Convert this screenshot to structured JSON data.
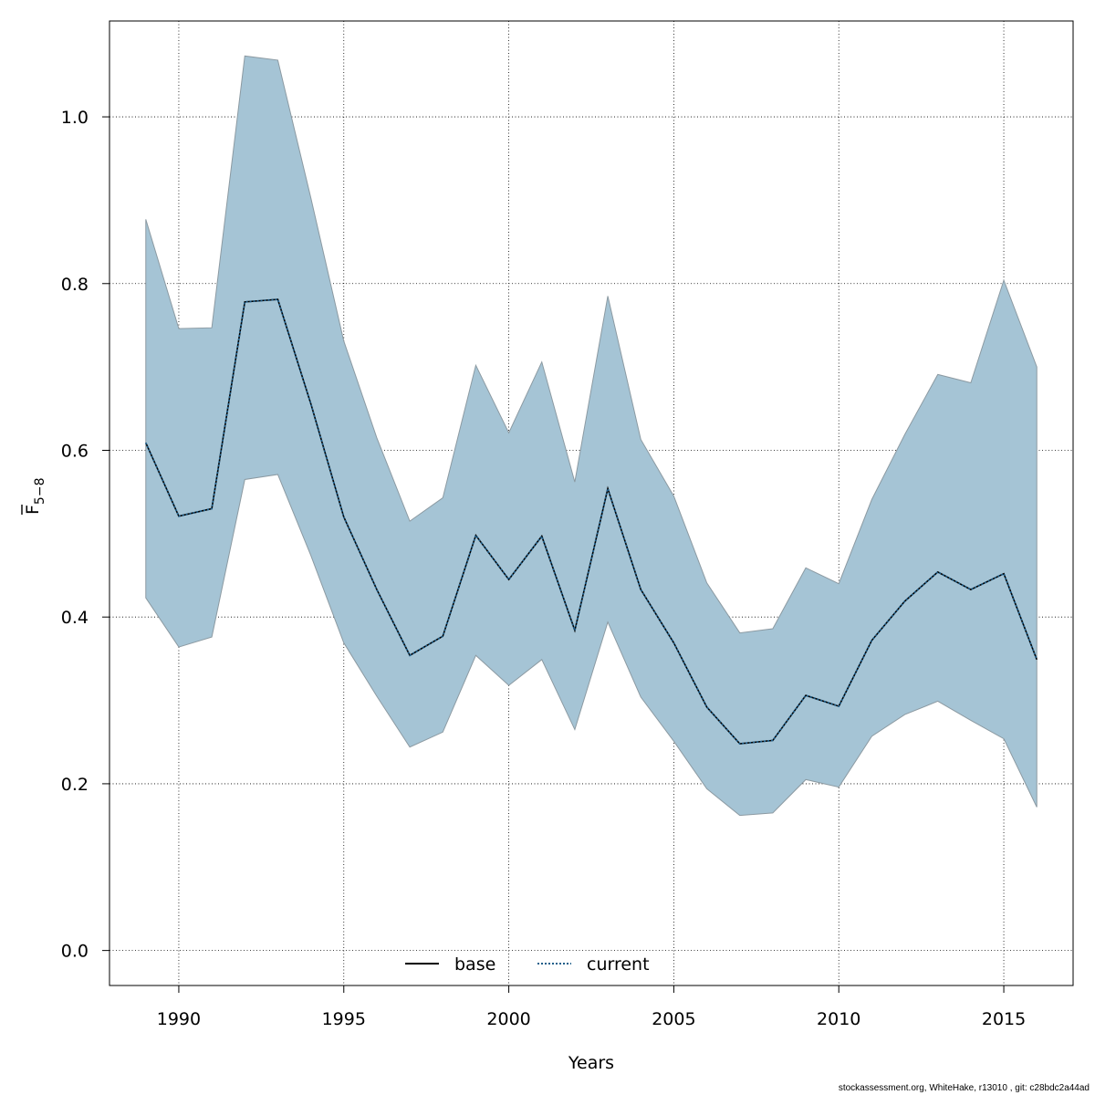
{
  "chart_data": {
    "type": "line",
    "xlabel": "Years",
    "ylabel_main": "F",
    "ylabel_sub": "5−8",
    "xlim": [
      1987.9,
      2017.1
    ],
    "ylim": [
      -0.042,
      1.115
    ],
    "xticks": [
      1990,
      1995,
      2000,
      2005,
      2010,
      2015
    ],
    "xtick_labels": [
      "1990",
      "1995",
      "2000",
      "2005",
      "2010",
      "2015"
    ],
    "yticks": [
      0.0,
      0.2,
      0.4,
      0.6,
      0.8,
      1.0
    ],
    "ytick_labels": [
      "0.0",
      "0.2",
      "0.4",
      "0.6",
      "0.8",
      "1.0"
    ],
    "grid": true,
    "legend_position": "bottom-center",
    "x": [
      1989,
      1990,
      1991,
      1992,
      1993,
      1994,
      1995,
      1996,
      1997,
      1998,
      1999,
      2000,
      2001,
      2002,
      2003,
      2004,
      2005,
      2006,
      2007,
      2008,
      2009,
      2010,
      2011,
      2012,
      2013,
      2014,
      2015,
      2016
    ],
    "band": {
      "color": "#a5c4d5",
      "edge_color": "#8c9aa2",
      "upper": [
        0.877,
        0.746,
        0.747,
        1.073,
        1.068,
        0.903,
        0.731,
        0.615,
        0.515,
        0.543,
        0.702,
        0.621,
        0.706,
        0.562,
        0.785,
        0.613,
        0.545,
        0.441,
        0.381,
        0.386,
        0.459,
        0.44,
        0.541,
        0.619,
        0.691,
        0.681,
        0.804,
        0.7
      ],
      "lower": [
        0.423,
        0.364,
        0.376,
        0.565,
        0.571,
        0.474,
        0.369,
        0.305,
        0.244,
        0.262,
        0.354,
        0.318,
        0.349,
        0.265,
        0.394,
        0.304,
        0.251,
        0.194,
        0.162,
        0.165,
        0.205,
        0.196,
        0.257,
        0.283,
        0.299,
        0.276,
        0.254,
        0.172
      ]
    },
    "series": [
      {
        "name": "base",
        "color": "#000000",
        "dash": "solid",
        "values": [
          0.609,
          0.521,
          0.53,
          0.778,
          0.781,
          0.656,
          0.52,
          0.433,
          0.354,
          0.377,
          0.498,
          0.445,
          0.497,
          0.384,
          0.554,
          0.433,
          0.369,
          0.292,
          0.248,
          0.252,
          0.306,
          0.293,
          0.372,
          0.419,
          0.454,
          0.433,
          0.452,
          0.349
        ]
      },
      {
        "name": "current",
        "color": "#1f5f8b",
        "dash": "dotted",
        "values": [
          0.609,
          0.521,
          0.53,
          0.778,
          0.781,
          0.656,
          0.52,
          0.433,
          0.354,
          0.377,
          0.498,
          0.445,
          0.497,
          0.384,
          0.554,
          0.433,
          0.369,
          0.292,
          0.248,
          0.252,
          0.306,
          0.293,
          0.372,
          0.419,
          0.454,
          0.433,
          0.452,
          0.349
        ]
      }
    ]
  },
  "footer_text": "stockassessment.org, WhiteHake, r13010 , git: c28bdc2a44ad"
}
